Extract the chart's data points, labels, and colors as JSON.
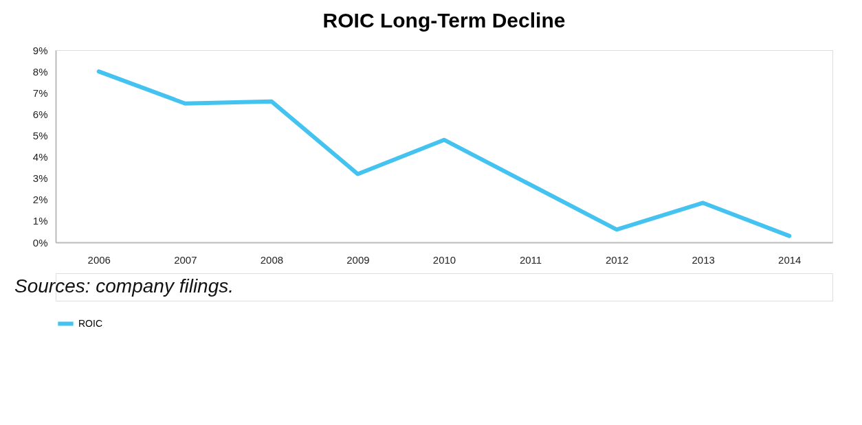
{
  "chart_data": {
    "type": "line",
    "title": "ROIC Long-Term Decline",
    "categories": [
      "2006",
      "2007",
      "2008",
      "2009",
      "2010",
      "2011",
      "2012",
      "2013",
      "2014"
    ],
    "series": [
      {
        "name": "ROIC",
        "color": "#45c3f0",
        "values": [
          8.0,
          6.5,
          6.6,
          3.2,
          4.8,
          2.7,
          0.6,
          1.85,
          0.3
        ]
      }
    ],
    "ylim": [
      0,
      9
    ],
    "yticks": [
      {
        "value": 0,
        "label": "0%"
      },
      {
        "value": 1,
        "label": "1%"
      },
      {
        "value": 2,
        "label": "2%"
      },
      {
        "value": 3,
        "label": "3%"
      },
      {
        "value": 4,
        "label": "4%"
      },
      {
        "value": 5,
        "label": "5%"
      },
      {
        "value": 6,
        "label": "6%"
      },
      {
        "value": 7,
        "label": "7%"
      },
      {
        "value": 8,
        "label": "8%"
      },
      {
        "value": 9,
        "label": "9%"
      }
    ],
    "grid": false,
    "legend": "bottom",
    "marker": "none",
    "line_style": "solid",
    "annotations": [
      "Sources: company filings."
    ]
  }
}
